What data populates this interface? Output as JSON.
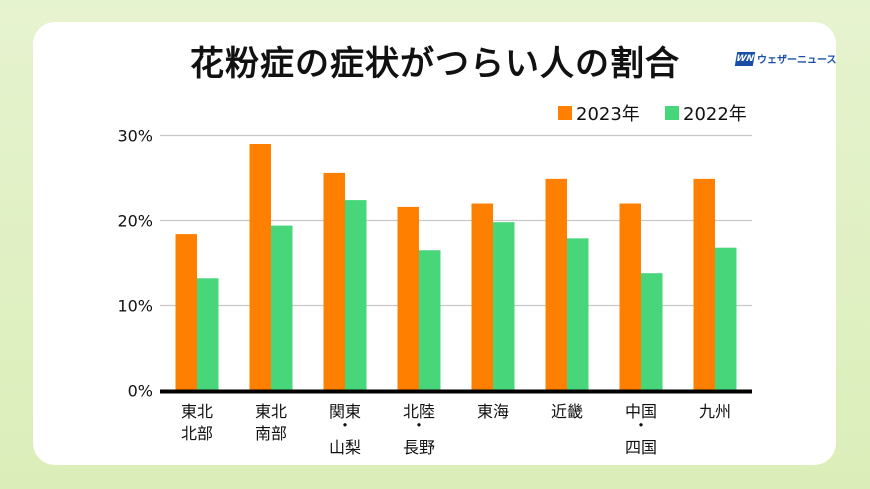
{
  "chart_data": {
    "type": "bar",
    "title": "花粉症の症状がつらい人の割合",
    "categories": [
      [
        "東北",
        "北部"
      ],
      [
        "東北",
        "南部"
      ],
      [
        "関東",
        "・",
        "山梨"
      ],
      [
        "北陸",
        "・",
        "長野"
      ],
      [
        "東海"
      ],
      [
        "近畿"
      ],
      [
        "中国",
        "・",
        "四国"
      ],
      [
        "九州"
      ]
    ],
    "series": [
      {
        "name": "2023年",
        "color": "#ff8000",
        "values": [
          18.4,
          29.0,
          25.6,
          21.6,
          22.0,
          24.9,
          22.0,
          24.9
        ]
      },
      {
        "name": "2022年",
        "color": "#47d67a",
        "values": [
          13.2,
          19.4,
          22.4,
          16.5,
          19.8,
          17.9,
          13.8,
          16.8
        ]
      }
    ],
    "yticks": [
      "0%",
      "10%",
      "20%",
      "30%"
    ],
    "ylim": [
      0,
      30
    ],
    "grid": true,
    "legend": "top-right"
  },
  "logo": {
    "mark": "WN",
    "text": "ウェザーニュース"
  }
}
